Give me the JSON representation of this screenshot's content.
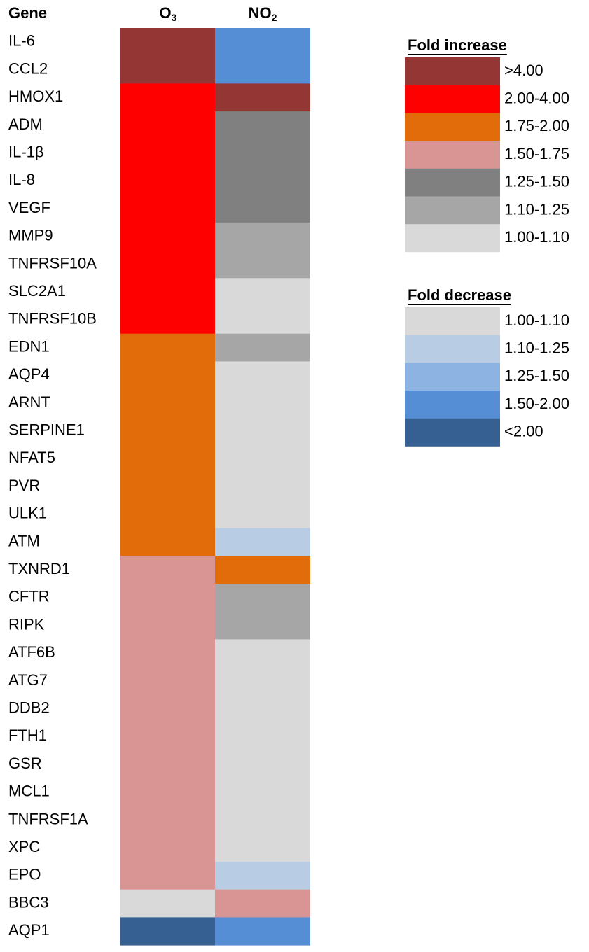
{
  "header": {
    "gene": "Gene",
    "o3": {
      "text": "O",
      "sub": "3"
    },
    "no2": {
      "text": "NO",
      "sub": "2"
    }
  },
  "rows": [
    {
      "gene": "IL-6",
      "o3": "#943634",
      "no2": "#558ed5"
    },
    {
      "gene": "CCL2",
      "o3": "#943634",
      "no2": "#558ed5"
    },
    {
      "gene": "HMOX1",
      "o3": "#ff0000",
      "no2": "#943634"
    },
    {
      "gene": "ADM",
      "o3": "#ff0000",
      "no2": "#808080"
    },
    {
      "gene": "IL-1β",
      "o3": "#ff0000",
      "no2": "#808080"
    },
    {
      "gene": "IL-8",
      "o3": "#ff0000",
      "no2": "#808080"
    },
    {
      "gene": "VEGF",
      "o3": "#ff0000",
      "no2": "#808080"
    },
    {
      "gene": "MMP9",
      "o3": "#ff0000",
      "no2": "#a6a6a6"
    },
    {
      "gene": "TNFRSF10A",
      "o3": "#ff0000",
      "no2": "#a6a6a6"
    },
    {
      "gene": "SLC2A1",
      "o3": "#ff0000",
      "no2": "#d9d9d9"
    },
    {
      "gene": "TNFRSF10B",
      "o3": "#ff0000",
      "no2": "#d9d9d9"
    },
    {
      "gene": "EDN1",
      "o3": "#e36c0a",
      "no2": "#a6a6a6"
    },
    {
      "gene": "AQP4",
      "o3": "#e36c0a",
      "no2": "#d9d9d9"
    },
    {
      "gene": "ARNT",
      "o3": "#e36c0a",
      "no2": "#d9d9d9"
    },
    {
      "gene": "SERPINE1",
      "o3": "#e36c0a",
      "no2": "#d9d9d9"
    },
    {
      "gene": "NFAT5",
      "o3": "#e36c0a",
      "no2": "#d9d9d9"
    },
    {
      "gene": "PVR",
      "o3": "#e36c0a",
      "no2": "#d9d9d9"
    },
    {
      "gene": "ULK1",
      "o3": "#e36c0a",
      "no2": "#d9d9d9"
    },
    {
      "gene": "ATM",
      "o3": "#e36c0a",
      "no2": "#b8cce4"
    },
    {
      "gene": "TXNRD1",
      "o3": "#d99594",
      "no2": "#e36c0a"
    },
    {
      "gene": "CFTR",
      "o3": "#d99594",
      "no2": "#a6a6a6"
    },
    {
      "gene": "RIPK",
      "o3": "#d99594",
      "no2": "#a6a6a6"
    },
    {
      "gene": "ATF6B",
      "o3": "#d99594",
      "no2": "#d9d9d9"
    },
    {
      "gene": "ATG7",
      "o3": "#d99594",
      "no2": "#d9d9d9"
    },
    {
      "gene": "DDB2",
      "o3": "#d99594",
      "no2": "#d9d9d9"
    },
    {
      "gene": "FTH1",
      "o3": "#d99594",
      "no2": "#d9d9d9"
    },
    {
      "gene": "GSR",
      "o3": "#d99594",
      "no2": "#d9d9d9"
    },
    {
      "gene": "MCL1",
      "o3": "#d99594",
      "no2": "#d9d9d9"
    },
    {
      "gene": "TNFRSF1A",
      "o3": "#d99594",
      "no2": "#d9d9d9"
    },
    {
      "gene": "XPC",
      "o3": "#d99594",
      "no2": "#d9d9d9"
    },
    {
      "gene": "EPO",
      "o3": "#d99594",
      "no2": "#b8cce4"
    },
    {
      "gene": "BBC3",
      "o3": "#d9d9d9",
      "no2": "#d99594"
    },
    {
      "gene": "AQP1",
      "o3": "#366092",
      "no2": "#558ed5"
    }
  ],
  "legends": [
    {
      "title": "Fold increase",
      "entries": [
        {
          "label": ">4.00",
          "color": "#943634"
        },
        {
          "label": "2.00-4.00",
          "color": "#ff0000"
        },
        {
          "label": "1.75-2.00",
          "color": "#e36c0a"
        },
        {
          "label": "1.50-1.75",
          "color": "#d99594"
        },
        {
          "label": "1.25-1.50",
          "color": "#808080"
        },
        {
          "label": "1.10-1.25",
          "color": "#a6a6a6"
        },
        {
          "label": "1.00-1.10",
          "color": "#d9d9d9"
        }
      ]
    },
    {
      "title": "Fold decrease",
      "entries": [
        {
          "label": "1.00-1.10",
          "color": "#d9d9d9"
        },
        {
          "label": "1.10-1.25",
          "color": "#b8cce4"
        },
        {
          "label": "1.25-1.50",
          "color": "#8db3e2"
        },
        {
          "label": "1.50-2.00",
          "color": "#558ed5"
        },
        {
          "label": "<2.00",
          "color": "#366092"
        }
      ]
    }
  ]
}
